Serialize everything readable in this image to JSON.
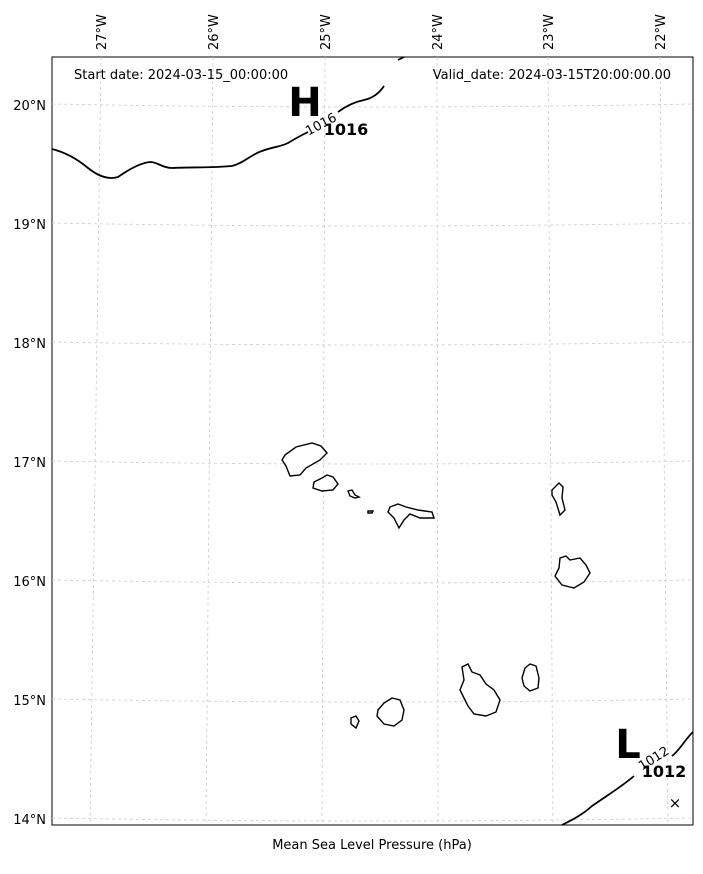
{
  "header": {
    "start_date": "Start date: 2024-03-15_00:00:00",
    "valid_date": "Valid_date: 2024-03-15T20:00:00.00"
  },
  "axes": {
    "lon_labels": [
      "27°W",
      "26°W",
      "25°W",
      "24°W",
      "23°W",
      "22°W"
    ],
    "lat_labels": [
      "20°N",
      "19°N",
      "18°N",
      "17°N",
      "16°N",
      "15°N",
      "14°N"
    ]
  },
  "pressure_centers": [
    {
      "type": "H",
      "value": "1016"
    },
    {
      "type": "L",
      "value": "1012"
    }
  ],
  "contour_labels": [
    "1016",
    "1012"
  ],
  "marker": "×",
  "caption": "Mean Sea Level Pressure (hPa)"
}
